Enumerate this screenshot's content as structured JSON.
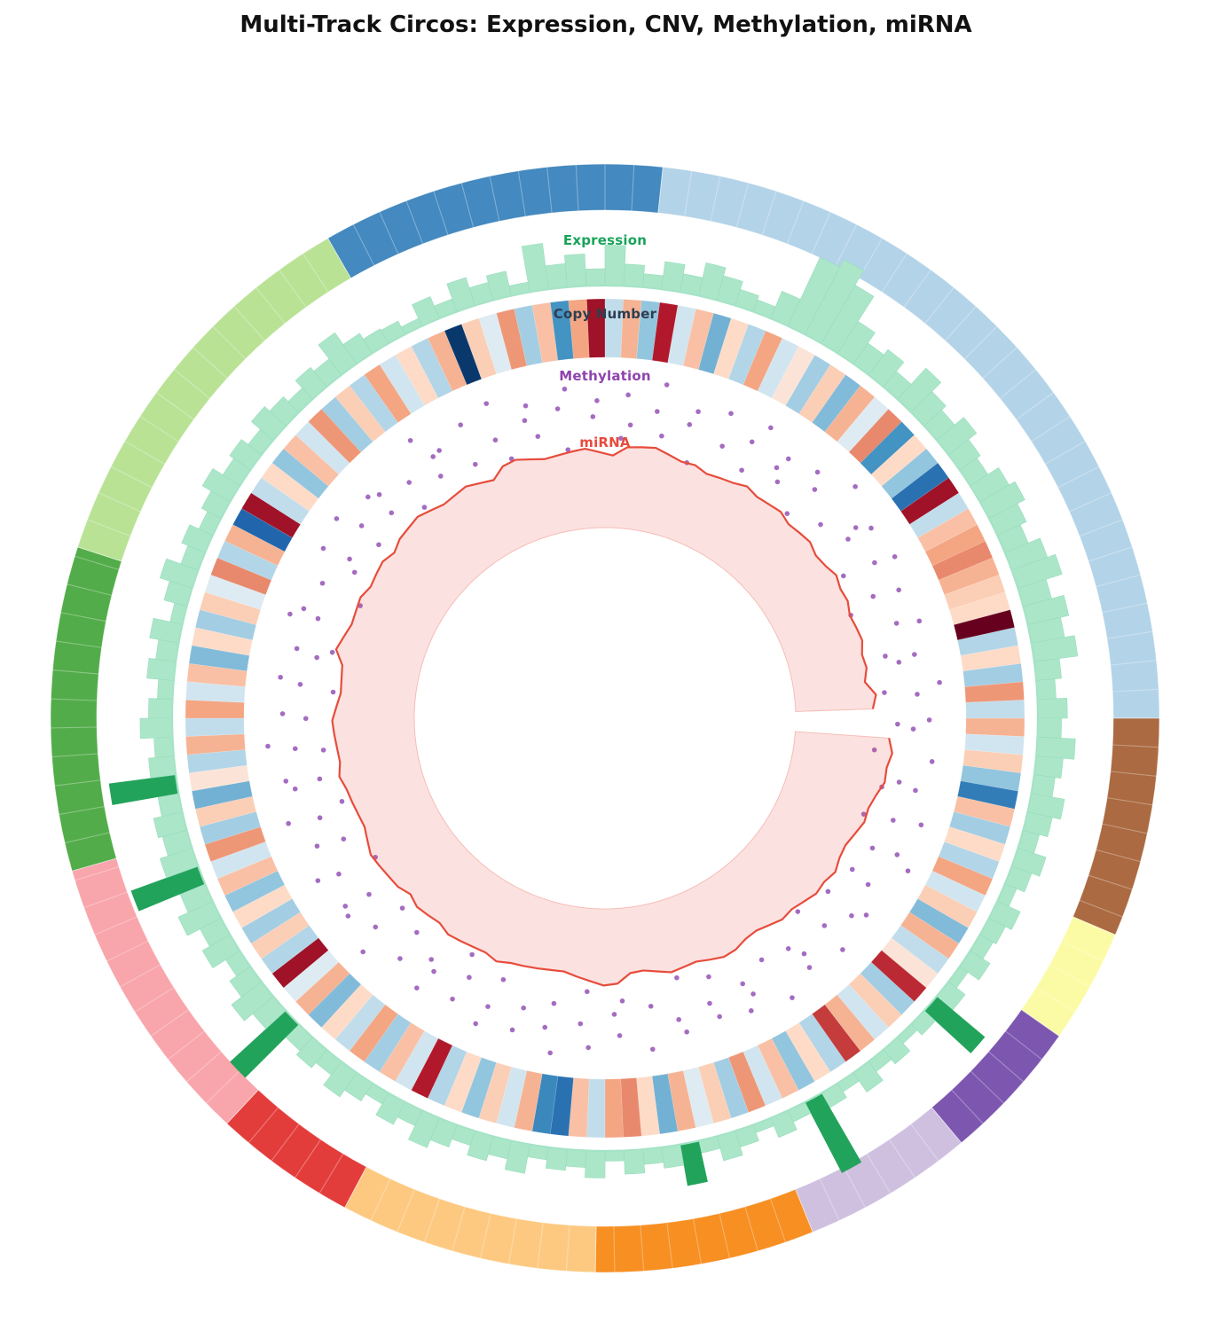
{
  "chart_data": {
    "type": "circos",
    "title": "Multi-Track Circos: Expression, CNV, Methylation, miRNA",
    "ideogram": {
      "start_angle_deg": -30,
      "tick_interval_deg": 3,
      "segments": [
        {
          "color": "#4489bf",
          "sweep_deg": 36
        },
        {
          "color": "#b3d3e8",
          "sweep_deg": 84
        },
        {
          "color": "#ab6a41",
          "sweep_deg": 23
        },
        {
          "color": "#fbfba5",
          "sweep_deg": 12
        },
        {
          "color": "#7d56b0",
          "sweep_deg": 15
        },
        {
          "color": "#cfc0e0",
          "sweep_deg": 18
        },
        {
          "color": "#f78f23",
          "sweep_deg": 23
        },
        {
          "color": "#fdc981",
          "sweep_deg": 27
        },
        {
          "color": "#e33d3b",
          "sweep_deg": 15
        },
        {
          "color": "#f8a5ab",
          "sweep_deg": 31
        },
        {
          "color": "#53ac4a",
          "sweep_deg": 34
        },
        {
          "color": "#b9e295",
          "sweep_deg": 42
        }
      ]
    },
    "tracks": {
      "expression": {
        "label": "Expression",
        "label_color": "#19a35a",
        "bar_color": "#ace6c9",
        "bar_edge_color": "#95ddbb",
        "highlight_color": "#22a35b",
        "baseline_color": "#a5e3c6",
        "start_angle_deg": -30,
        "bin_sweep_deg": 2.5,
        "highlight_indices": [
          64,
          72,
          79,
          102,
          111,
          116
        ],
        "values": [
          0.18,
          0.1,
          0.28,
          0.16,
          0.35,
          0.22,
          0.3,
          0.12,
          0.55,
          0.28,
          0.38,
          0.2,
          0.48,
          0.26,
          0.16,
          0.33,
          0.22,
          0.4,
          0.3,
          0.2,
          0.15,
          0.35,
          0.9,
          1.0,
          0.8,
          0.45,
          0.3,
          0.38,
          0.24,
          0.5,
          0.35,
          0.28,
          0.42,
          0.3,
          0.25,
          0.4,
          0.48,
          0.38,
          0.3,
          0.45,
          0.55,
          0.35,
          0.5,
          0.4,
          0.52,
          0.3,
          0.22,
          0.35,
          0.28,
          0.45,
          0.32,
          0.25,
          0.4,
          0.3,
          0.2,
          0.35,
          0.25,
          0.15,
          0.3,
          0.22,
          0.18,
          0.28,
          0.12,
          0.25,
          0.75,
          0.18,
          0.1,
          0.22,
          0.15,
          0.28,
          0.12,
          0.2,
          0.95,
          0.15,
          0.25,
          0.1,
          0.2,
          0.3,
          0.15,
          0.5,
          0.25,
          0.18,
          0.28,
          0.12,
          0.32,
          0.2,
          0.25,
          0.15,
          0.35,
          0.22,
          0.3,
          0.18,
          0.28,
          0.38,
          0.2,
          0.3,
          0.15,
          0.25,
          0.35,
          0.2,
          0.28,
          0.22,
          0.9,
          0.32,
          0.45,
          0.3,
          0.2,
          0.38,
          0.28,
          0.45,
          0.32,
          0.85,
          0.4,
          0.3,
          0.35,
          0.25,
          0.8,
          0.3,
          0.22,
          0.38,
          0.28,
          0.18,
          0.32,
          0.24,
          0.35,
          0.15,
          0.28,
          0.4,
          0.22,
          0.3,
          0.18,
          0.26,
          0.38,
          0.24,
          0.3,
          0.2,
          0.34,
          0.26,
          0.18,
          0.3,
          0.24,
          0.45,
          0.28,
          0.2
        ]
      },
      "copy_number": {
        "label": "Copy Number",
        "label_color": "#2e3e50",
        "start_angle_deg": -30,
        "bin_sweep_deg": 2.5,
        "colormap": "RdBu",
        "colormap_stops": [
          [
            -1.0,
            "#67001f"
          ],
          [
            -0.8,
            "#b2182b"
          ],
          [
            -0.6,
            "#d6604d"
          ],
          [
            -0.35,
            "#f4a582"
          ],
          [
            -0.15,
            "#fddbc7"
          ],
          [
            0.0,
            "#f7f7f7"
          ],
          [
            0.15,
            "#d1e5f0"
          ],
          [
            0.35,
            "#92c5de"
          ],
          [
            0.6,
            "#4393c3"
          ],
          [
            0.8,
            "#2166ac"
          ],
          [
            1.0,
            "#053061"
          ]
        ],
        "values": [
          -0.15,
          0.25,
          -0.3,
          0.97,
          -0.2,
          0.1,
          -0.4,
          0.3,
          -0.25,
          0.6,
          -0.35,
          -0.85,
          0.2,
          -0.3,
          0.35,
          -0.8,
          0.15,
          -0.25,
          0.45,
          -0.15,
          0.25,
          -0.35,
          0.15,
          -0.1,
          0.3,
          -0.2,
          0.4,
          -0.3,
          0.1,
          -0.45,
          0.6,
          -0.15,
          0.35,
          0.75,
          -0.85,
          0.2,
          -0.25,
          -0.35,
          -0.45,
          -0.3,
          -0.2,
          -0.15,
          -1.0,
          0.25,
          -0.15,
          0.3,
          -0.4,
          0.2,
          -0.3,
          0.15,
          -0.2,
          0.35,
          0.7,
          -0.25,
          0.3,
          -0.15,
          0.25,
          -0.35,
          0.15,
          -0.2,
          0.4,
          -0.3,
          0.2,
          -0.1,
          -0.75,
          0.3,
          -0.2,
          0.15,
          -0.3,
          -0.7,
          0.25,
          -0.15,
          0.35,
          -0.25,
          0.15,
          -0.4,
          0.3,
          -0.2,
          0.1,
          -0.3,
          0.45,
          -0.15,
          -0.45,
          -0.35,
          0.2,
          -0.25,
          0.75,
          0.65,
          -0.3,
          0.15,
          -0.2,
          0.35,
          -0.15,
          0.25,
          -0.8,
          0.15,
          -0.25,
          0.3,
          -0.35,
          0.2,
          -0.15,
          0.4,
          -0.3,
          0.1,
          -0.85,
          0.25,
          -0.2,
          0.3,
          -0.15,
          0.35,
          -0.25,
          0.15,
          -0.4,
          0.3,
          -0.2,
          0.45,
          -0.1,
          0.25,
          -0.3,
          0.2,
          -0.35,
          0.15,
          -0.25,
          0.4,
          -0.15,
          0.3,
          -0.2,
          0.1,
          -0.45,
          0.25,
          -0.3,
          0.8,
          -0.85,
          0.2,
          -0.15,
          0.35,
          -0.25,
          0.15,
          -0.4,
          0.3,
          -0.2,
          0.25,
          -0.35,
          0.15
        ]
      },
      "methylation": {
        "label": "Methylation",
        "label_color": "#8e44ad",
        "dot_color": "#9a5cba",
        "start_angle_deg": -30,
        "values": [
          0.62,
          0.3,
          0.75,
          0.45,
          0.85,
          0.2,
          0.55,
          0.7,
          0.35,
          0.6,
          0.15,
          0.8,
          0.48,
          0.65,
          0.25,
          0.72,
          0.4,
          0.58,
          0.88,
          0.33,
          0.52,
          0.68,
          0.12,
          0.78,
          0.42,
          0.6,
          0.28,
          0.83,
          0.5,
          0.65,
          0.38,
          0.73,
          0.18,
          0.57,
          0.9,
          0.35,
          0.62,
          0.48,
          0.75,
          0.22,
          0.58,
          0.8,
          0.4,
          0.68,
          0.1,
          0.53,
          0.77,
          0.32,
          0.63,
          0.45,
          0.85,
          0.25,
          0.6,
          0.72,
          0.38,
          0.55,
          0.15,
          0.78,
          0.47,
          0.66,
          0.3,
          0.82,
          0.52,
          0.2,
          0.7,
          0.43,
          0.88,
          0.35,
          0.58,
          0.75,
          0.27,
          0.63,
          0.48,
          0.8,
          0.17,
          0.55,
          0.7,
          0.4,
          0.85,
          0.33,
          0.6,
          0.45,
          0.75,
          0.23,
          0.67,
          0.5,
          0.13,
          0.72,
          0.57,
          0.37,
          0.83,
          0.28,
          0.65,
          0.42,
          0.78,
          0.18,
          0.53,
          0.88,
          0.35,
          0.62,
          0.47,
          0.73,
          0.25,
          0.58,
          0.8,
          0.38,
          0.67,
          0.15,
          0.52,
          0.77,
          0.43,
          0.63,
          0.3,
          0.85,
          0.22,
          0.57,
          0.72,
          0.4,
          0.68,
          0.12,
          0.55,
          0.78,
          0.33,
          0.62,
          0.48,
          0.82,
          0.2,
          0.65,
          0.37,
          0.73,
          0.28,
          0.58,
          0.87,
          0.45,
          0.7,
          0.17,
          0.53,
          0.75,
          0.4,
          0.63,
          0.25,
          0.8,
          0.5,
          0.68,
          0.13,
          0.6,
          0.35,
          0.77,
          0.47,
          0.83,
          0.3,
          0.57,
          0.72,
          0.42,
          0.65,
          0.22,
          0.53,
          0.88,
          0.38,
          0.6
        ]
      },
      "mirna": {
        "label": "miRNA",
        "label_color": "#e74c3c",
        "line_color": "#e74c3c",
        "fill_opacity": 0.16,
        "start_angle_deg": 94,
        "sweep_deg": 354,
        "values": [
          1.0,
          0.96,
          0.92,
          0.95,
          0.88,
          0.84,
          0.87,
          0.82,
          0.78,
          0.81,
          0.76,
          0.72,
          0.75,
          0.7,
          0.66,
          0.69,
          0.64,
          0.6,
          0.63,
          0.58,
          0.61,
          0.57,
          0.53,
          0.56,
          0.6,
          0.55,
          0.51,
          0.54,
          0.58,
          0.62,
          0.57,
          0.53,
          0.49,
          0.52,
          0.56,
          0.6,
          0.64,
          0.59,
          0.55,
          0.58,
          0.62,
          0.66,
          0.61,
          0.65,
          0.69,
          0.64,
          0.6,
          0.63,
          0.67,
          0.71,
          0.66,
          0.62,
          0.65,
          0.69,
          0.73,
          0.68,
          0.64,
          0.67,
          0.71,
          0.75,
          0.7,
          0.66,
          0.69,
          0.73,
          0.77,
          0.72,
          0.68,
          0.71,
          0.75,
          0.7,
          0.74,
          0.78,
          0.73,
          0.69,
          0.72,
          0.76,
          0.71,
          0.67,
          0.7,
          0.74,
          0.69,
          0.65,
          0.68,
          0.72,
          0.67,
          0.63,
          0.66,
          0.7,
          0.74,
          0.69,
          0.65,
          0.68,
          0.72,
          0.76,
          0.71,
          0.67,
          0.7,
          0.65,
          0.69,
          0.73,
          0.68,
          0.64,
          0.67,
          0.71,
          0.66,
          0.7,
          0.74,
          0.69,
          0.73,
          0.68,
          0.64,
          0.67,
          0.62,
          0.66,
          0.7,
          0.65,
          0.69,
          0.64,
          0.68,
          0.63
        ]
      }
    }
  }
}
